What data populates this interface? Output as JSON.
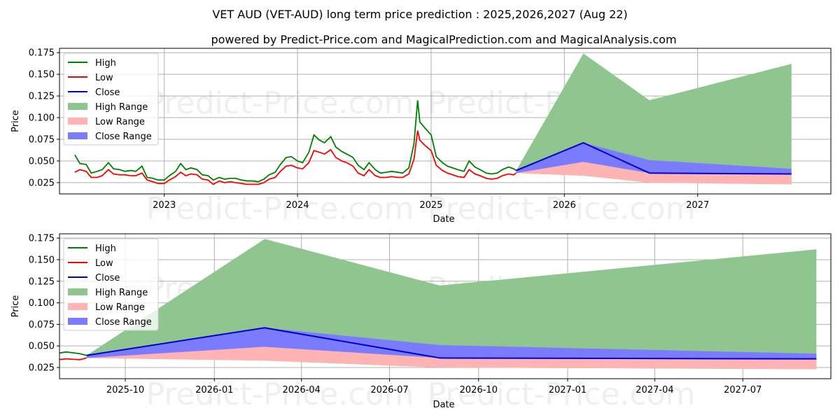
{
  "title": "VET AUD (VET-AUD) long term price prediction : 2025,2026,2027 (Aug 22)",
  "subtitle": "powered by Predict-Price.com and MagicalPrediction.com and MagicalAnalysis.com",
  "watermark": "Predict-Price.com",
  "colors": {
    "high": "#008000",
    "low": "#ff0000",
    "close": "#0000cc",
    "high_range": "#8fc68f",
    "low_range": "#ffb3b3",
    "close_range": "#7b7bff"
  },
  "legend": [
    "High",
    "Low",
    "Close",
    "High Range",
    "Low Range",
    "Close Range"
  ],
  "chart_data": [
    {
      "type": "line",
      "ylabel": "Price",
      "xlabel": "Date",
      "ylim": [
        0.012,
        0.18
      ],
      "xlim": [
        "2022-03-20",
        "2028-01-01"
      ],
      "yticks": [
        "0.025",
        "0.050",
        "0.075",
        "0.100",
        "0.125",
        "0.150",
        "0.175"
      ],
      "xticks": [
        {
          "date": "2023-01-01",
          "label": "2023"
        },
        {
          "date": "2024-01-01",
          "label": "2024"
        },
        {
          "date": "2025-01-01",
          "label": "2025"
        },
        {
          "date": "2026-01-01",
          "label": "2026"
        },
        {
          "date": "2027-01-01",
          "label": "2027"
        }
      ],
      "grid": true,
      "legend_position": "upper-left",
      "history": {
        "dates": [
          "2022-05-01",
          "2022-05-15",
          "2022-06-01",
          "2022-06-15",
          "2022-07-01",
          "2022-07-15",
          "2022-08-01",
          "2022-08-15",
          "2022-09-01",
          "2022-09-15",
          "2022-10-01",
          "2022-10-15",
          "2022-11-01",
          "2022-11-15",
          "2022-12-01",
          "2022-12-15",
          "2023-01-01",
          "2023-01-15",
          "2023-02-01",
          "2023-02-15",
          "2023-03-01",
          "2023-03-15",
          "2023-04-01",
          "2023-04-15",
          "2023-05-01",
          "2023-05-15",
          "2023-06-01",
          "2023-06-15",
          "2023-07-01",
          "2023-07-15",
          "2023-08-01",
          "2023-08-15",
          "2023-09-01",
          "2023-09-15",
          "2023-10-01",
          "2023-10-15",
          "2023-11-01",
          "2023-11-15",
          "2023-12-01",
          "2023-12-15",
          "2024-01-01",
          "2024-01-15",
          "2024-02-01",
          "2024-02-15",
          "2024-03-01",
          "2024-03-15",
          "2024-04-01",
          "2024-04-15",
          "2024-05-01",
          "2024-05-15",
          "2024-06-01",
          "2024-06-15",
          "2024-07-01",
          "2024-07-15",
          "2024-08-01",
          "2024-08-15",
          "2024-09-01",
          "2024-09-15",
          "2024-10-01",
          "2024-10-15",
          "2024-11-01",
          "2024-11-15",
          "2024-11-25",
          "2024-12-01",
          "2024-12-15",
          "2025-01-01",
          "2025-01-15",
          "2025-02-01",
          "2025-02-15",
          "2025-03-01",
          "2025-03-15",
          "2025-04-01",
          "2025-04-15",
          "2025-05-01",
          "2025-05-15",
          "2025-06-01",
          "2025-06-15",
          "2025-07-01",
          "2025-07-15",
          "2025-08-01",
          "2025-08-15",
          "2025-08-22"
        ],
        "high": [
          0.057,
          0.047,
          0.046,
          0.036,
          0.038,
          0.04,
          0.048,
          0.041,
          0.04,
          0.038,
          0.039,
          0.038,
          0.044,
          0.031,
          0.03,
          0.028,
          0.028,
          0.033,
          0.038,
          0.047,
          0.04,
          0.042,
          0.04,
          0.034,
          0.033,
          0.028,
          0.031,
          0.029,
          0.03,
          0.03,
          0.028,
          0.027,
          0.027,
          0.026,
          0.029,
          0.034,
          0.037,
          0.046,
          0.054,
          0.055,
          0.05,
          0.048,
          0.06,
          0.08,
          0.074,
          0.071,
          0.078,
          0.066,
          0.061,
          0.058,
          0.054,
          0.045,
          0.04,
          0.048,
          0.04,
          0.036,
          0.037,
          0.038,
          0.037,
          0.036,
          0.042,
          0.07,
          0.12,
          0.095,
          0.088,
          0.08,
          0.055,
          0.048,
          0.044,
          0.042,
          0.04,
          0.038,
          0.05,
          0.043,
          0.04,
          0.036,
          0.035,
          0.036,
          0.04,
          0.043,
          0.041,
          0.039
        ],
        "low": [
          0.037,
          0.04,
          0.038,
          0.031,
          0.031,
          0.033,
          0.04,
          0.035,
          0.034,
          0.034,
          0.033,
          0.033,
          0.036,
          0.028,
          0.026,
          0.024,
          0.024,
          0.028,
          0.032,
          0.037,
          0.033,
          0.035,
          0.034,
          0.029,
          0.028,
          0.023,
          0.027,
          0.025,
          0.026,
          0.025,
          0.024,
          0.023,
          0.023,
          0.023,
          0.025,
          0.029,
          0.031,
          0.038,
          0.044,
          0.045,
          0.042,
          0.041,
          0.048,
          0.062,
          0.06,
          0.058,
          0.063,
          0.054,
          0.05,
          0.048,
          0.044,
          0.036,
          0.033,
          0.04,
          0.033,
          0.031,
          0.031,
          0.032,
          0.031,
          0.031,
          0.035,
          0.052,
          0.085,
          0.074,
          0.068,
          0.062,
          0.045,
          0.039,
          0.036,
          0.034,
          0.032,
          0.031,
          0.04,
          0.035,
          0.033,
          0.03,
          0.029,
          0.03,
          0.033,
          0.035,
          0.034,
          0.036
        ]
      }
    },
    {
      "type": "area",
      "ylabel": "Price",
      "xlabel": "Date",
      "ylim": [
        0.012,
        0.18
      ],
      "xlim": [
        "2025-07-25",
        "2027-09-30"
      ],
      "yticks": [
        "0.025",
        "0.050",
        "0.075",
        "0.100",
        "0.125",
        "0.150",
        "0.175"
      ],
      "xticks": [
        {
          "date": "2025-10-01",
          "label": "2025-10"
        },
        {
          "date": "2026-01-01",
          "label": "2026-01"
        },
        {
          "date": "2026-04-01",
          "label": "2026-04"
        },
        {
          "date": "2026-07-01",
          "label": "2026-07"
        },
        {
          "date": "2026-10-01",
          "label": "2026-10"
        },
        {
          "date": "2027-01-01",
          "label": "2027-01"
        },
        {
          "date": "2027-04-01",
          "label": "2027-04"
        },
        {
          "date": "2027-07-01",
          "label": "2027-07"
        }
      ],
      "grid": true,
      "legend_position": "upper-left",
      "forecast": {
        "dates": [
          "2025-08-22",
          "2026-02-22",
          "2026-08-22",
          "2027-09-15"
        ],
        "high_range": [
          0.039,
          0.174,
          0.12,
          0.162
        ],
        "low_range": [
          0.036,
          0.033,
          0.025,
          0.023
        ],
        "close": [
          0.039,
          0.071,
          0.036,
          0.035
        ],
        "close_range_top": [
          0.04,
          0.071,
          0.051,
          0.041
        ],
        "close_range_bottom": [
          0.036,
          0.049,
          0.036,
          0.035
        ],
        "low_range_top": [
          0.037,
          0.049,
          0.036,
          0.035
        ]
      }
    }
  ]
}
